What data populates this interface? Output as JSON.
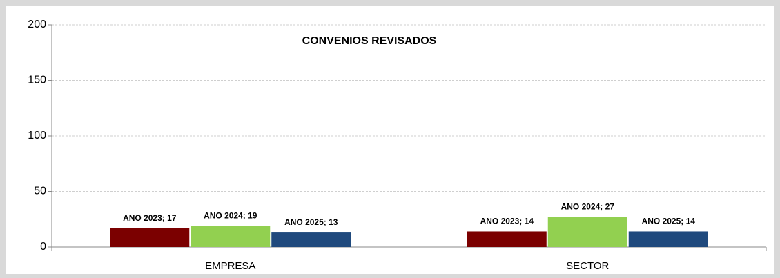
{
  "chart_data": {
    "type": "bar",
    "title": "CONVENIOS REVISADOS",
    "categories": [
      "EMPRESA",
      "SECTOR"
    ],
    "series": [
      {
        "name": "ANO 2023",
        "color": "#7b0000",
        "values": [
          17,
          14
        ],
        "value_labels": [
          "ANO 2023; 17",
          "ANO 2023; 14"
        ]
      },
      {
        "name": "ANO 2024",
        "color": "#92d050",
        "values": [
          19,
          27
        ],
        "value_labels": [
          "ANO 2024; 19",
          "ANO 2024; 27"
        ]
      },
      {
        "name": "ANO 2025",
        "color": "#1f497d",
        "values": [
          13,
          14
        ],
        "value_labels": [
          "ANO 2025; 13",
          "ANO 2025; 14"
        ]
      }
    ],
    "ylim": [
      0,
      200
    ],
    "yticks": [
      0,
      50,
      100,
      150,
      200
    ],
    "grid": true
  }
}
